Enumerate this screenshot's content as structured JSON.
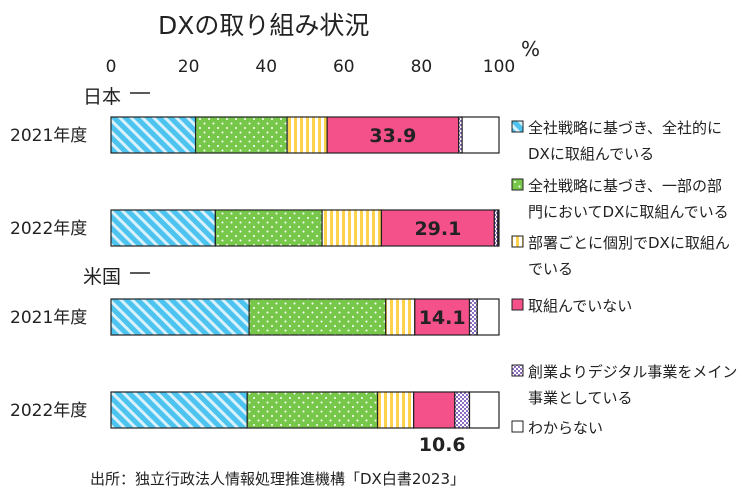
{
  "chart_data": {
    "type": "bar",
    "orientation": "horizontal",
    "stacked": true,
    "title": "DXの取り組み状況",
    "unit": "%",
    "xlim": [
      0,
      100
    ],
    "xticks": [
      "0",
      "20",
      "40",
      "60",
      "80",
      "100"
    ],
    "groups": [
      "日本",
      "米国"
    ],
    "categories": [
      "2021年度",
      "2022年度",
      "2021年度",
      "2022年度"
    ],
    "category_groups": [
      "日本",
      "日本",
      "米国",
      "米国"
    ],
    "series": [
      {
        "name": "全社戦略に基づき、全社的にDXに取組んでいる",
        "legend_lines": [
          "全社戦略に基づき、全社的に",
          "DXに取組んでいる"
        ],
        "color": "#4dc3f0",
        "pattern": "diagonal",
        "values": [
          21.8,
          26.9,
          35.6,
          35.1
        ]
      },
      {
        "name": "全社戦略に基づき、一部の部門においてDXに取組んでいる",
        "legend_lines": [
          "全社戦略に基づき、一部の部",
          "門においてDXに取組んでいる"
        ],
        "color": "#77c84a",
        "pattern": "dots",
        "values": [
          23.6,
          27.5,
          35.2,
          33.6
        ]
      },
      {
        "name": "部署ごとに個別でDXに取組んでいる",
        "legend_lines": [
          "部署ごとに個別でDXに取組ん",
          "でいる"
        ],
        "color": "#ffd24d",
        "pattern": "vertical",
        "values": [
          10.3,
          15.3,
          7.5,
          9.3
        ]
      },
      {
        "name": "取組んでいない",
        "legend_lines": [
          "取組んでいない"
        ],
        "color": "#f4508a",
        "pattern": "solid",
        "values": [
          33.9,
          29.1,
          14.1,
          10.6
        ]
      },
      {
        "name": "創業よりデジタル事業をメイン事業としている",
        "legend_lines": [
          "創業よりデジタル事業をメイン",
          "事業としている"
        ],
        "color": "#8e6cc0",
        "pattern": "checker",
        "values": [
          0.9,
          0.9,
          2.0,
          3.8
        ]
      },
      {
        "name": "わからない",
        "legend_lines": [
          "わからない"
        ],
        "color": "#ffffff",
        "pattern": "solid",
        "values": [
          9.5,
          0.3,
          5.6,
          7.6
        ]
      }
    ],
    "data_labels": [
      "33.9",
      "29.1",
      "14.1",
      "10.6"
    ]
  },
  "source": "出所：独立行政法人情報処理推進機構「DX白書2023」"
}
